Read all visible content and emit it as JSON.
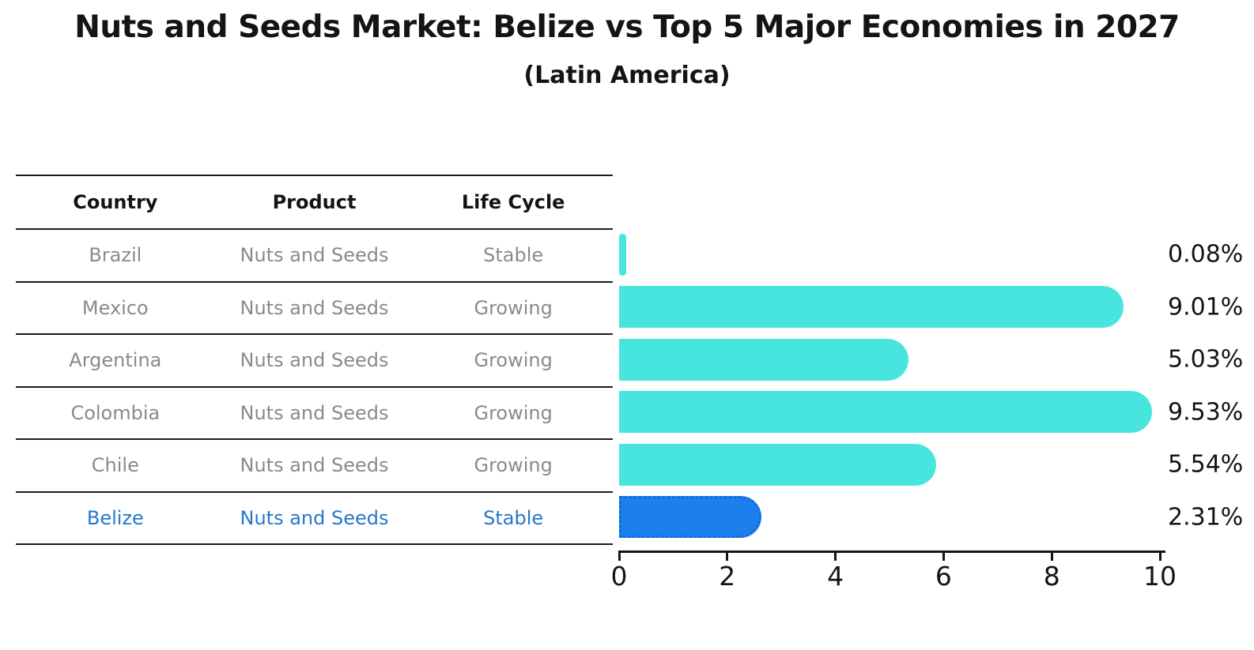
{
  "title": "Nuts and Seeds Market: Belize vs Top 5 Major Economies in 2027",
  "subtitle": "(Latin America)",
  "table": {
    "headers": [
      "Country",
      "Product",
      "Life Cycle"
    ],
    "rows": [
      {
        "country": "Brazil",
        "product": "Nuts and Seeds",
        "life_cycle": "Stable",
        "highlight": false
      },
      {
        "country": "Mexico",
        "product": "Nuts and Seeds",
        "life_cycle": "Growing",
        "highlight": false
      },
      {
        "country": "Argentina",
        "product": "Nuts and Seeds",
        "life_cycle": "Growing",
        "highlight": false
      },
      {
        "country": "Colombia",
        "product": "Nuts and Seeds",
        "life_cycle": "Growing",
        "highlight": false
      },
      {
        "country": "Chile",
        "product": "Nuts and Seeds",
        "life_cycle": "Growing",
        "highlight": false
      },
      {
        "country": "Belize",
        "product": "Nuts and Seeds",
        "life_cycle": "Stable",
        "highlight": true
      }
    ]
  },
  "chart_data": {
    "type": "bar",
    "orientation": "horizontal",
    "title": "Nuts and Seeds Market: Belize vs Top 5 Major Economies in 2027",
    "subtitle": "(Latin America)",
    "categories": [
      "Brazil",
      "Mexico",
      "Argentina",
      "Colombia",
      "Chile",
      "Belize"
    ],
    "values": [
      0.08,
      9.01,
      5.03,
      9.53,
      5.54,
      2.31
    ],
    "value_labels": [
      "0.08%",
      "9.01%",
      "5.03%",
      "9.53%",
      "5.54%",
      "2.31%"
    ],
    "xlim": [
      0,
      10
    ],
    "xticks": [
      "0",
      "2",
      "4",
      "6",
      "8",
      "10"
    ],
    "grid": false,
    "legend": false,
    "bar_color": "#48e5df",
    "highlight_bar_color": "#1b80ee",
    "highlight_border_color": "#1566d9",
    "highlight_index": 5,
    "highlight_text_color": "#2478cc",
    "text_color": "#141414",
    "muted_text_color": "#8a8a8a"
  }
}
